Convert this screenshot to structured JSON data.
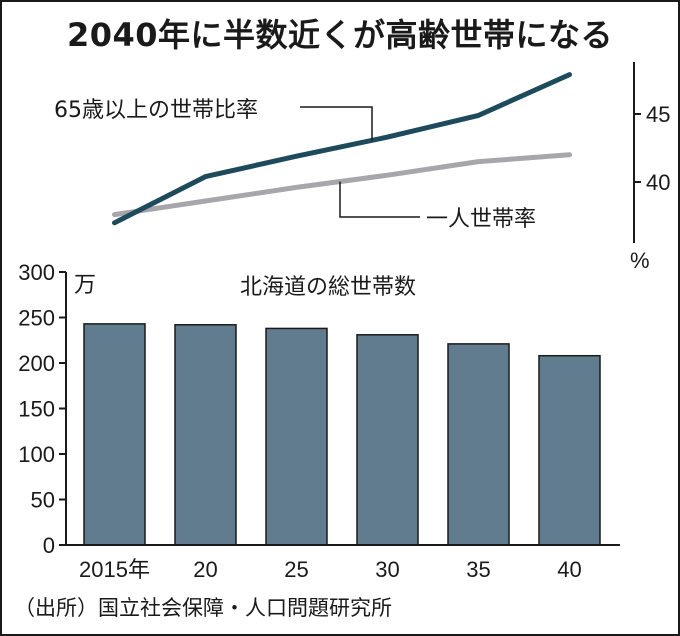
{
  "title": "2040年に半数近くが高齢世帯になる",
  "source": "（出所）国立社会保障・人口問題研究所",
  "colors": {
    "bar": "#627c8f",
    "elderly_line": "#1d4b5c",
    "single_line": "#a7a6aa",
    "axis": "#1a1a1a"
  },
  "chart_data": [
    {
      "type": "line",
      "x": [
        2015,
        2020,
        2025,
        2030,
        2035,
        2040
      ],
      "y_unit": "%",
      "ylim": [
        35,
        49
      ],
      "yticks": [
        40,
        45
      ],
      "grid": false,
      "series": [
        {
          "name": "65歳以上の世帯比率",
          "values": [
            37.0,
            40.4,
            41.9,
            43.3,
            44.9,
            47.9
          ]
        },
        {
          "name": "一人世帯率",
          "values": [
            37.6,
            38.6,
            39.6,
            40.5,
            41.5,
            42.0
          ]
        }
      ]
    },
    {
      "type": "bar",
      "title": "北海道の総世帯数",
      "y_unit": "万",
      "categories": [
        "2015年",
        "20",
        "25",
        "30",
        "35",
        "40"
      ],
      "values": [
        243,
        242,
        238,
        231,
        221,
        208
      ],
      "ylim": [
        0,
        300
      ],
      "yticks": [
        0,
        50,
        100,
        150,
        200,
        250,
        300
      ],
      "grid": false
    }
  ]
}
